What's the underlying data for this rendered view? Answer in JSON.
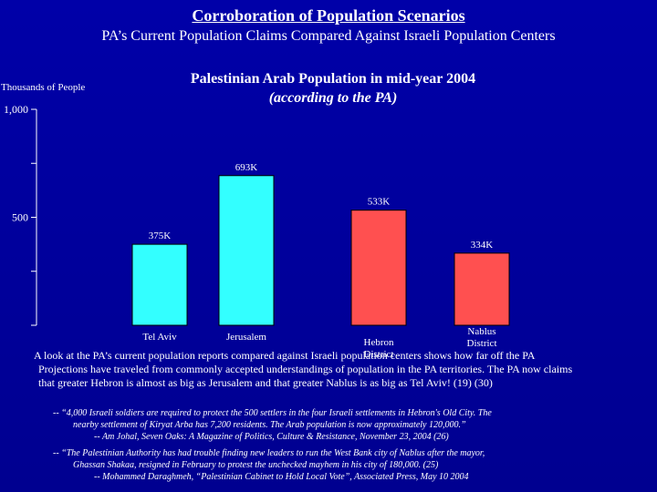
{
  "slide": {
    "main_title": "Corroboration of Population Scenarios",
    "sub_title": "PA’s Current Population Claims Compared Against Israeli Population Centers",
    "paragraph": {
      "line1": "A look at the PA’s current population reports compared against Israeli population centers shows how far off the PA",
      "line2": "Projections have traveled from commonly accepted understandings of population in the PA territories.  The PA now claims",
      "line3": "that greater Hebron is almost as big as Jerusalem and that greater Nablus is as big as Tel Aviv! (19) (30)"
    },
    "quote1": {
      "line1": "--  “4,000 Israeli soldiers are required to protect the 500 settlers in the four Israeli settlements in Hebron's Old City. The",
      "line2": "nearby settlement of Kiryat Arba has 7,200 residents. The Arab population is now approximately 120,000.”",
      "line3": "-- Am Johal, Seven Oaks:  A Magazine of Politics, Culture & Resistance, November 23, 2004  (26)"
    },
    "quote2": {
      "line1": "--  “The Palestinian Authority has had trouble finding new leaders to run the West Bank city of Nablus after the mayor,",
      "line2": "Ghassan Shakaa, resigned in February to protest the unchecked mayhem in his city of 180,000.  (25)",
      "line3": "-- Mohammed Daraghmeh, “Palestinian Cabinet to Hold Local Vote”, Associated Press, May 10 2004"
    }
  },
  "chart_data": {
    "type": "bar",
    "title_line1": "Palestinian Arab Population in mid-year 2004",
    "title_line2": "(according to the PA)",
    "ylabel": "Thousands of People",
    "ylim": [
      0,
      1000
    ],
    "yticks": [
      0,
      250,
      500,
      750,
      1000
    ],
    "ytick_labels": [
      "",
      "",
      "500",
      "",
      "1,000"
    ],
    "categories": [
      [
        "Tel Aviv"
      ],
      [
        "Jerusalem"
      ],
      [
        "Hebron",
        "District"
      ],
      [
        "Nablus",
        "District"
      ]
    ],
    "values": [
      375,
      693,
      533,
      334
    ],
    "value_labels": [
      "375K",
      "693K",
      "533K",
      "334K"
    ],
    "colors": [
      "#33ffff",
      "#33ffff",
      "#ff5050",
      "#ff5050"
    ],
    "axis_color": "#ffffff"
  }
}
